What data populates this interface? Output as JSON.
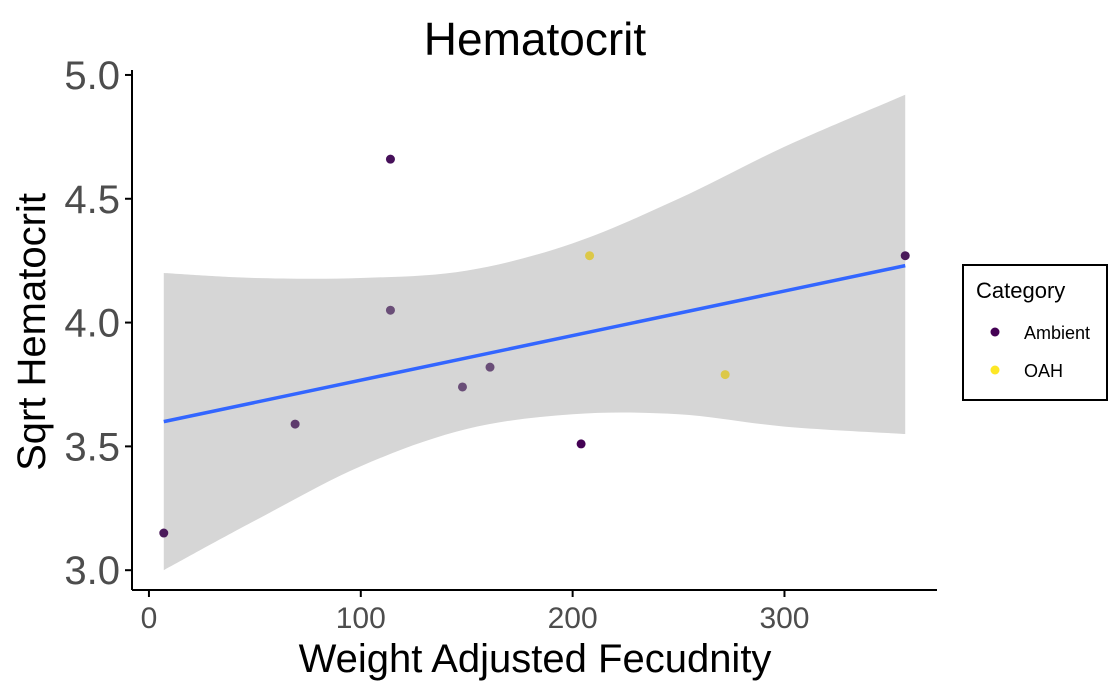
{
  "chart_data": {
    "type": "scatter",
    "title": "Hematocrit",
    "xlabel": "Weight Adjusted Fecudnity",
    "ylabel": "Sqrt Hematocrit",
    "xlim": [
      -8,
      372
    ],
    "ylim": [
      2.92,
      5.02
    ],
    "xticks": [
      0,
      100,
      200,
      300
    ],
    "xtick_labels": [
      "0",
      "100",
      "200",
      "300"
    ],
    "yticks": [
      3.0,
      3.5,
      4.0,
      4.5,
      5.0
    ],
    "ytick_labels": [
      "3.0",
      "3.5",
      "4.0",
      "4.5",
      "5.0"
    ],
    "grid": false,
    "legend": {
      "title": "Category",
      "position": "right",
      "entries": [
        {
          "label": "Ambient",
          "color": "#440154"
        },
        {
          "label": "OAH",
          "color": "#FDE725"
        }
      ]
    },
    "points": [
      {
        "x": 7,
        "y": 3.15,
        "color": "#4a1a5a"
      },
      {
        "x": 69,
        "y": 3.59,
        "color": "#5e3a6c"
      },
      {
        "x": 114,
        "y": 4.66,
        "color": "#46105a"
      },
      {
        "x": 114,
        "y": 4.05,
        "color": "#6a4e78"
      },
      {
        "x": 148,
        "y": 3.74,
        "color": "#6a4e78"
      },
      {
        "x": 161,
        "y": 3.82,
        "color": "#6a4e78"
      },
      {
        "x": 204,
        "y": 3.51,
        "color": "#440154"
      },
      {
        "x": 208,
        "y": 4.27,
        "color": "#dcc848"
      },
      {
        "x": 272,
        "y": 3.79,
        "color": "#dcc848"
      },
      {
        "x": 357,
        "y": 4.27,
        "color": "#4a1a5a"
      }
    ],
    "fit": {
      "method": "linear",
      "x": [
        7,
        357
      ],
      "y": [
        3.6,
        4.23
      ],
      "color": "#3366FF",
      "band_color": "#d6d6d6",
      "band": {
        "x": [
          7,
          50,
          100,
          150,
          200,
          250,
          300,
          357
        ],
        "lower": [
          3.0,
          3.2,
          3.42,
          3.57,
          3.63,
          3.63,
          3.58,
          3.55
        ],
        "upper": [
          4.2,
          4.18,
          4.18,
          4.21,
          4.32,
          4.5,
          4.71,
          4.92
        ]
      }
    }
  }
}
